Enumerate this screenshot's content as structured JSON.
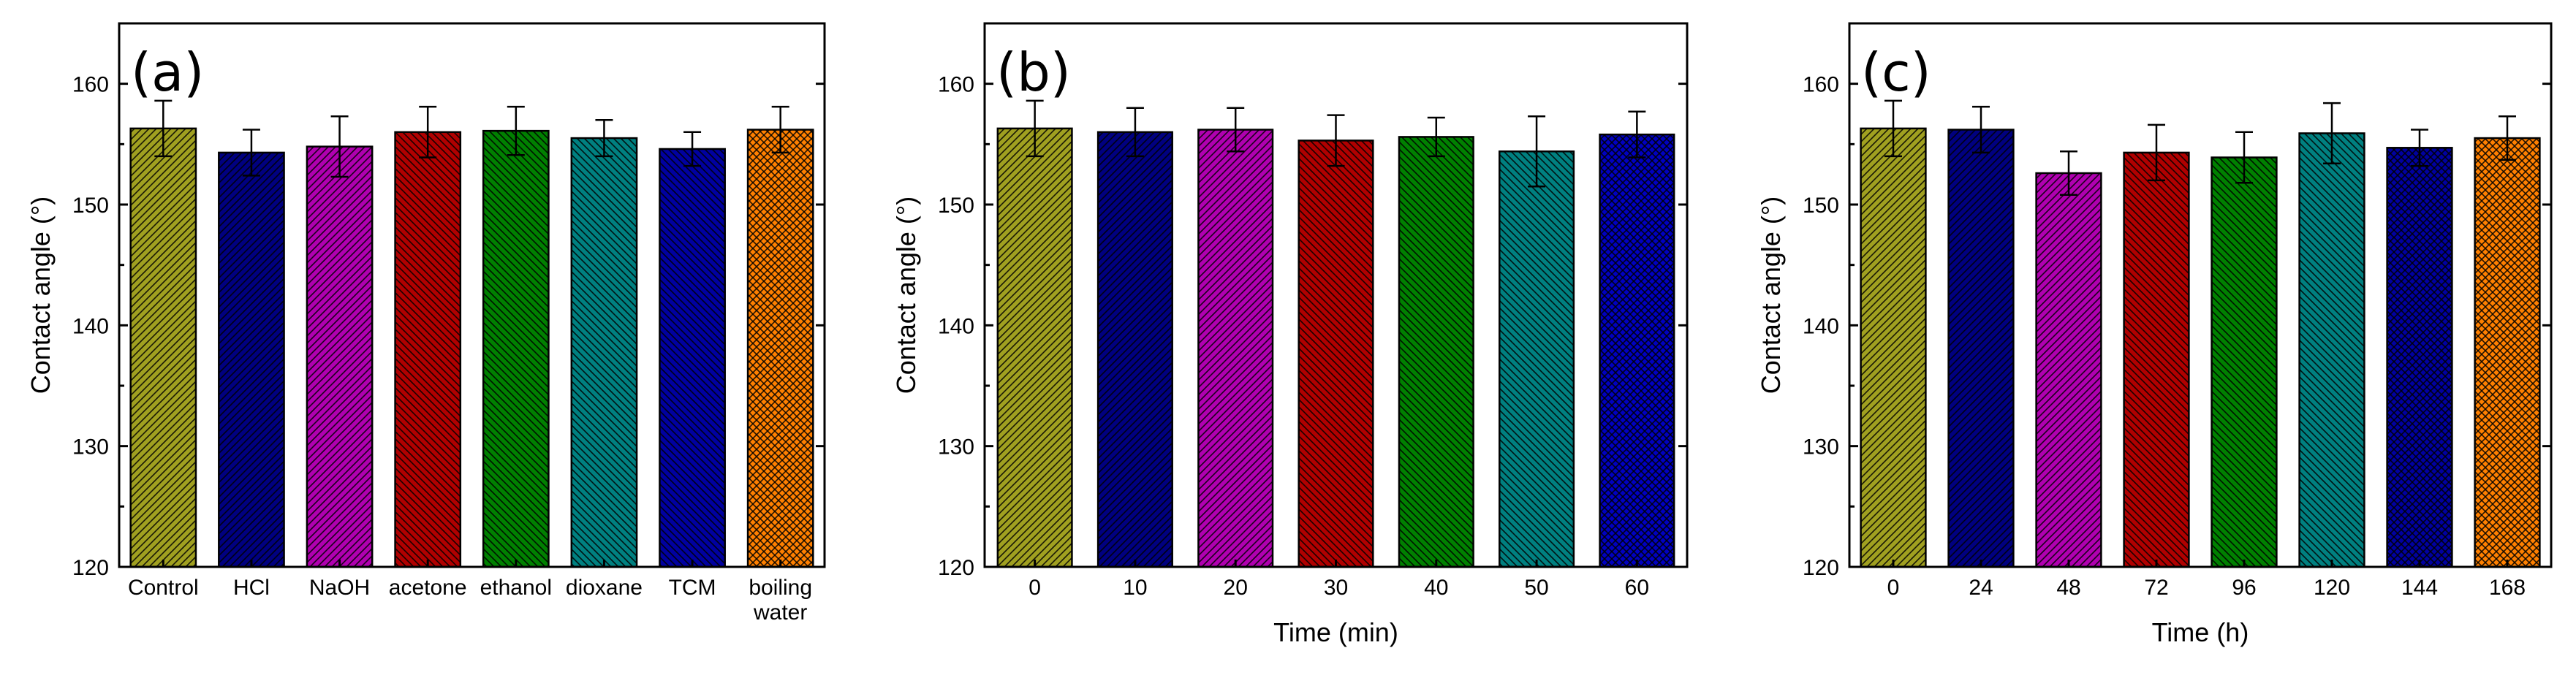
{
  "chart_data": [
    {
      "type": "bar",
      "panel_label": "(a)",
      "title": "",
      "xlabel": "",
      "ylabel": "Contact angle (°)",
      "ylim": [
        120,
        165
      ],
      "yticks": [
        120,
        130,
        140,
        150,
        160
      ],
      "categories": [
        [
          "Control"
        ],
        [
          "HCl"
        ],
        [
          "NaOH"
        ],
        [
          "acetone"
        ],
        [
          "ethanol"
        ],
        [
          "dioxane"
        ],
        [
          "TCM"
        ],
        [
          "boiling",
          "water"
        ]
      ],
      "values": [
        156.3,
        154.3,
        154.8,
        156.0,
        156.1,
        155.5,
        154.6,
        156.2
      ],
      "errors": [
        2.3,
        1.9,
        2.5,
        2.1,
        2.0,
        1.5,
        1.4,
        1.9
      ],
      "colors": [
        "#A0A020",
        "#000080",
        "#B000B0",
        "#B00000",
        "#008000",
        "#008080",
        "#0000A0",
        "#FF8000"
      ],
      "patterns": [
        "fwd",
        "fwd",
        "fwd",
        "back",
        "back",
        "back",
        "back",
        "cross"
      ]
    },
    {
      "type": "bar",
      "panel_label": "(b)",
      "title": "",
      "xlabel": "Time (min)",
      "ylabel": "Contact angle (°)",
      "ylim": [
        120,
        165
      ],
      "yticks": [
        120,
        130,
        140,
        150,
        160
      ],
      "categories": [
        [
          "0"
        ],
        [
          "10"
        ],
        [
          "20"
        ],
        [
          "30"
        ],
        [
          "40"
        ],
        [
          "50"
        ],
        [
          "60"
        ]
      ],
      "values": [
        156.3,
        156.0,
        156.2,
        155.3,
        155.6,
        154.4,
        155.8
      ],
      "errors": [
        2.3,
        2.0,
        1.8,
        2.1,
        1.6,
        2.9,
        1.9
      ],
      "colors": [
        "#A0A020",
        "#000080",
        "#B000B0",
        "#B00000",
        "#008000",
        "#008080",
        "#0000C0"
      ],
      "patterns": [
        "fwd",
        "fwd",
        "fwd",
        "back",
        "back",
        "back",
        "cross"
      ]
    },
    {
      "type": "bar",
      "panel_label": "(c)",
      "title": "",
      "xlabel": "Time (h)",
      "ylabel": "Contact angle (°)",
      "ylim": [
        120,
        165
      ],
      "yticks": [
        120,
        130,
        140,
        150,
        160
      ],
      "categories": [
        [
          "0"
        ],
        [
          "24"
        ],
        [
          "48"
        ],
        [
          "72"
        ],
        [
          "96"
        ],
        [
          "120"
        ],
        [
          "144"
        ],
        [
          "168"
        ]
      ],
      "values": [
        156.3,
        156.2,
        152.6,
        154.3,
        153.9,
        155.9,
        154.7,
        155.5
      ],
      "errors": [
        2.3,
        1.9,
        1.8,
        2.3,
        2.1,
        2.5,
        1.5,
        1.8
      ],
      "colors": [
        "#A0A020",
        "#000080",
        "#B000B0",
        "#B00000",
        "#008000",
        "#008080",
        "#0000A0",
        "#FF8000"
      ],
      "patterns": [
        "fwd",
        "fwd",
        "fwd",
        "back",
        "back",
        "back",
        "cross",
        "cross"
      ]
    }
  ]
}
